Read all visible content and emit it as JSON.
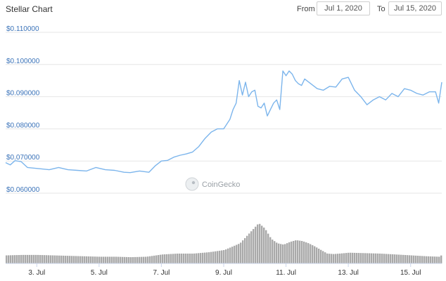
{
  "header": {
    "title": "Stellar Chart",
    "from_label": "From",
    "from_value": "Jul 1, 2020",
    "to_label": "To",
    "to_value": "Jul 15, 2020"
  },
  "watermark": "CoinGecko",
  "colors": {
    "price_line": "#7cb5ec",
    "volume_bars": "#a9a9a9",
    "grid": "#e6e6e6",
    "ytick": "#3b73b9"
  },
  "chart_data": {
    "type": "line",
    "title": "Stellar Chart",
    "yticks": [
      "$0.110000",
      "$0.100000",
      "$0.090000",
      "$0.080000",
      "$0.070000",
      "$0.060000"
    ],
    "ytick_values": [
      0.11,
      0.1,
      0.09,
      0.08,
      0.07,
      0.06
    ],
    "xticks": [
      "3. Jul",
      "5. Jul",
      "7. Jul",
      "9. Jul",
      "11. Jul",
      "13. Jul",
      "15. Jul"
    ],
    "xtick_values": [
      3,
      5,
      7,
      9,
      11,
      13,
      15
    ],
    "xlim": [
      2.0,
      16.0
    ],
    "ylim": [
      0.06,
      0.11
    ],
    "grid": true,
    "series": [
      {
        "type": "line",
        "x": [
          2.0,
          2.15,
          2.3,
          2.5,
          2.7,
          2.9,
          3.1,
          3.4,
          3.7,
          4.0,
          4.3,
          4.6,
          4.9,
          5.2,
          5.5,
          5.8,
          6.0,
          6.3,
          6.6,
          6.8,
          7.0,
          7.2,
          7.4,
          7.6,
          7.8,
          8.0,
          8.2,
          8.4,
          8.6,
          8.8,
          9.0,
          9.2,
          9.3,
          9.4,
          9.5,
          9.6,
          9.7,
          9.8,
          9.9,
          10.0,
          10.1,
          10.2,
          10.3,
          10.4,
          10.5,
          10.6,
          10.7,
          10.8,
          10.9,
          11.0,
          11.1,
          11.2,
          11.3,
          11.4,
          11.5,
          11.6,
          11.8,
          12.0,
          12.2,
          12.4,
          12.6,
          12.8,
          13.0,
          13.2,
          13.4,
          13.6,
          13.8,
          14.0,
          14.2,
          14.4,
          14.6,
          14.8,
          15.0,
          15.2,
          15.4,
          15.6,
          15.8,
          15.9,
          16.0
        ],
        "y": [
          0.0695,
          0.0688,
          0.0701,
          0.0698,
          0.068,
          0.0678,
          0.0676,
          0.0673,
          0.068,
          0.0673,
          0.0671,
          0.0669,
          0.068,
          0.0673,
          0.0671,
          0.0665,
          0.0664,
          0.0669,
          0.0665,
          0.0685,
          0.07,
          0.0702,
          0.0712,
          0.0718,
          0.0722,
          0.0728,
          0.0745,
          0.077,
          0.079,
          0.08,
          0.08,
          0.083,
          0.086,
          0.088,
          0.095,
          0.0905,
          0.0945,
          0.09,
          0.0915,
          0.092,
          0.087,
          0.0865,
          0.088,
          0.084,
          0.086,
          0.088,
          0.089,
          0.086,
          0.098,
          0.0965,
          0.098,
          0.097,
          0.095,
          0.094,
          0.0935,
          0.0955,
          0.094,
          0.0925,
          0.092,
          0.0932,
          0.093,
          0.0955,
          0.096,
          0.092,
          0.09,
          0.0875,
          0.089,
          0.09,
          0.089,
          0.091,
          0.09,
          0.0925,
          0.092,
          0.091,
          0.0905,
          0.0915,
          0.0915,
          0.088,
          0.0945
        ]
      },
      {
        "type": "bar",
        "x": [
          2.0,
          2.5,
          3.0,
          3.5,
          4.0,
          4.5,
          5.0,
          5.5,
          6.0,
          6.5,
          7.0,
          7.5,
          8.0,
          8.5,
          9.0,
          9.5,
          9.7,
          9.9,
          10.1,
          10.3,
          10.5,
          10.7,
          10.9,
          11.1,
          11.3,
          11.5,
          11.7,
          11.9,
          12.1,
          12.3,
          12.5,
          12.7,
          13.0,
          13.5,
          14.0,
          14.5,
          15.0,
          15.5,
          15.9,
          16.0
        ],
        "y": [
          0.18,
          0.19,
          0.19,
          0.18,
          0.17,
          0.16,
          0.15,
          0.15,
          0.14,
          0.15,
          0.2,
          0.22,
          0.22,
          0.25,
          0.3,
          0.45,
          0.6,
          0.75,
          0.9,
          0.78,
          0.55,
          0.45,
          0.42,
          0.48,
          0.52,
          0.5,
          0.45,
          0.38,
          0.3,
          0.22,
          0.21,
          0.22,
          0.24,
          0.23,
          0.22,
          0.2,
          0.18,
          0.16,
          0.15,
          0.2
        ]
      }
    ]
  }
}
